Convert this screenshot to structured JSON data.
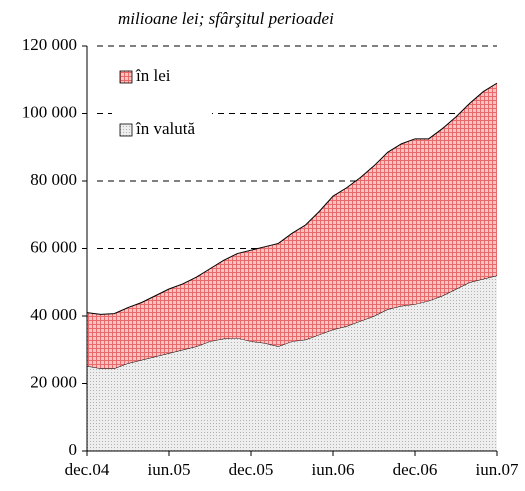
{
  "chart_data": {
    "type": "stacked-area",
    "subtitle": "milioane lei; sfârşitul perioadei",
    "categories": [
      "dec.04",
      null,
      null,
      null,
      null,
      null,
      "iun.05",
      null,
      null,
      null,
      null,
      null,
      "dec.05",
      null,
      null,
      null,
      null,
      null,
      "iun.06",
      null,
      null,
      null,
      null,
      null,
      "dec.06",
      null,
      null,
      null,
      null,
      null,
      "iun.07"
    ],
    "series": [
      {
        "name": "în valută",
        "color": "#d9d9d9",
        "values": [
          25200,
          24500,
          24500,
          26000,
          27000,
          28000,
          29000,
          30000,
          31000,
          32500,
          33300,
          33500,
          32500,
          32000,
          31000,
          32500,
          33000,
          34500,
          36000,
          37000,
          38500,
          40000,
          42000,
          43000,
          43500,
          44500,
          46000,
          48000,
          50000,
          51000,
          52000
        ]
      },
      {
        "name": "în lei",
        "color": "#e86a6a",
        "values": [
          15800,
          16000,
          16200,
          16500,
          17000,
          18000,
          19000,
          19500,
          20500,
          21500,
          23200,
          25000,
          27000,
          28500,
          30500,
          32000,
          34000,
          36500,
          39500,
          41000,
          42500,
          44500,
          46500,
          48000,
          49000,
          48000,
          49500,
          51000,
          53000,
          55500,
          57000
        ]
      }
    ],
    "ylim": [
      0,
      120000
    ],
    "yticks": [
      0,
      {
        "value": 20000,
        "label": "20 000"
      },
      {
        "value": 40000,
        "label": "40 000"
      },
      {
        "value": 60000,
        "label": "60 000"
      },
      {
        "value": 80000,
        "label": "80 000"
      },
      {
        "value": 100000,
        "label": "100 000"
      },
      {
        "value": 120000,
        "label": "120 000"
      }
    ],
    "grid_from": 60000
  }
}
